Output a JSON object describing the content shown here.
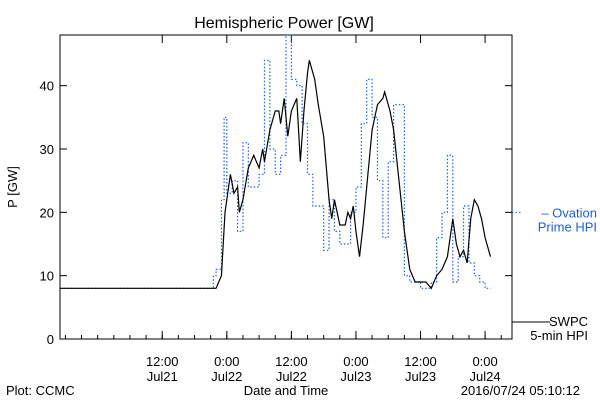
{
  "chart_data": {
    "type": "line",
    "title": "Hemispheric Power [GW]",
    "ylabel": "P [GW]",
    "xlabel": "Date and Time",
    "ylim": [
      0,
      48
    ],
    "xlim": [
      "2016-07-20T17:00",
      "2016-07-24T05:00"
    ],
    "yticks": [
      0,
      10,
      20,
      30,
      40
    ],
    "xticks": [
      {
        "time": "2016-07-21T12:00",
        "top": "12:00",
        "bottom": "Jul21"
      },
      {
        "time": "2016-07-22T00:00",
        "top": "0:00",
        "bottom": "Jul22"
      },
      {
        "time": "2016-07-22T12:00",
        "top": "12:00",
        "bottom": "Jul22"
      },
      {
        "time": "2016-07-23T00:00",
        "top": "0:00",
        "bottom": "Jul23"
      },
      {
        "time": "2016-07-23T12:00",
        "top": "12:00",
        "bottom": "Jul23"
      },
      {
        "time": "2016-07-24T00:00",
        "top": "0:00",
        "bottom": "Jul24"
      }
    ],
    "grid": false,
    "series": [
      {
        "name": "Ovation Prime HPI",
        "legend_lines": [
          "– Ovation",
          "Prime HPI"
        ],
        "color": "#1f5fd0",
        "style": "dotted-step",
        "level": 20,
        "points": [
          [
            "2016-07-20T17:00",
            8
          ],
          [
            "2016-07-21T21:00",
            8
          ],
          [
            "2016-07-21T21:30",
            10
          ],
          [
            "2016-07-21T22:00",
            11
          ],
          [
            "2016-07-21T23:00",
            22
          ],
          [
            "2016-07-21T23:30",
            35
          ],
          [
            "2016-07-22T00:00",
            23
          ],
          [
            "2016-07-22T01:00",
            25
          ],
          [
            "2016-07-22T02:00",
            17
          ],
          [
            "2016-07-22T03:00",
            31
          ],
          [
            "2016-07-22T04:00",
            24
          ],
          [
            "2016-07-22T06:00",
            26
          ],
          [
            "2016-07-22T07:00",
            44
          ],
          [
            "2016-07-22T08:00",
            30
          ],
          [
            "2016-07-22T09:00",
            26
          ],
          [
            "2016-07-22T10:00",
            29
          ],
          [
            "2016-07-22T11:00",
            48
          ],
          [
            "2016-07-22T12:00",
            41
          ],
          [
            "2016-07-22T13:00",
            40
          ],
          [
            "2016-07-22T14:00",
            34
          ],
          [
            "2016-07-22T15:00",
            26
          ],
          [
            "2016-07-22T16:00",
            21
          ],
          [
            "2016-07-22T18:00",
            14
          ],
          [
            "2016-07-22T19:00",
            22
          ],
          [
            "2016-07-22T20:00",
            17
          ],
          [
            "2016-07-22T21:00",
            15
          ],
          [
            "2016-07-22T23:00",
            20
          ],
          [
            "2016-07-23T00:00",
            24
          ],
          [
            "2016-07-23T01:00",
            34
          ],
          [
            "2016-07-23T02:00",
            41
          ],
          [
            "2016-07-23T03:00",
            35
          ],
          [
            "2016-07-23T04:00",
            25
          ],
          [
            "2016-07-23T05:00",
            16
          ],
          [
            "2016-07-23T06:00",
            28
          ],
          [
            "2016-07-23T07:00",
            37
          ],
          [
            "2016-07-23T09:00",
            10
          ],
          [
            "2016-07-23T10:00",
            9
          ],
          [
            "2016-07-23T12:00",
            8
          ],
          [
            "2016-07-23T14:00",
            9
          ],
          [
            "2016-07-23T15:00",
            16
          ],
          [
            "2016-07-23T16:00",
            20
          ],
          [
            "2016-07-23T17:00",
            29
          ],
          [
            "2016-07-23T18:00",
            9
          ],
          [
            "2016-07-23T19:00",
            13
          ],
          [
            "2016-07-23T20:00",
            21
          ],
          [
            "2016-07-23T21:00",
            12
          ],
          [
            "2016-07-23T22:00",
            10
          ],
          [
            "2016-07-23T23:00",
            9
          ],
          [
            "2016-07-24T00:00",
            8
          ],
          [
            "2016-07-24T01:00",
            8
          ]
        ]
      },
      {
        "name": "SWPC 5-min HPI",
        "legend_lines": [
          "SWPC",
          "5-min HPI"
        ],
        "color": "#000000",
        "style": "solid",
        "level": 2,
        "points": [
          [
            "2016-07-20T17:00",
            8
          ],
          [
            "2016-07-21T21:00",
            8
          ],
          [
            "2016-07-21T22:00",
            8
          ],
          [
            "2016-07-21T23:00",
            10
          ],
          [
            "2016-07-21T23:40",
            20
          ],
          [
            "2016-07-22T00:00",
            22
          ],
          [
            "2016-07-22T00:40",
            26
          ],
          [
            "2016-07-22T01:20",
            23
          ],
          [
            "2016-07-22T02:00",
            24
          ],
          [
            "2016-07-22T02:20",
            20
          ],
          [
            "2016-07-22T03:00",
            22
          ],
          [
            "2016-07-22T04:00",
            27
          ],
          [
            "2016-07-22T05:00",
            29
          ],
          [
            "2016-07-22T06:00",
            27
          ],
          [
            "2016-07-22T06:40",
            30
          ],
          [
            "2016-07-22T07:00",
            28
          ],
          [
            "2016-07-22T08:00",
            33
          ],
          [
            "2016-07-22T09:00",
            36
          ],
          [
            "2016-07-22T09:40",
            36
          ],
          [
            "2016-07-22T10:00",
            34
          ],
          [
            "2016-07-22T10:40",
            38
          ],
          [
            "2016-07-22T11:20",
            32
          ],
          [
            "2016-07-22T12:00",
            36
          ],
          [
            "2016-07-22T13:00",
            38
          ],
          [
            "2016-07-22T13:40",
            28
          ],
          [
            "2016-07-22T14:20",
            36
          ],
          [
            "2016-07-22T15:00",
            42
          ],
          [
            "2016-07-22T15:20",
            44
          ],
          [
            "2016-07-22T16:20",
            41
          ],
          [
            "2016-07-22T17:00",
            37
          ],
          [
            "2016-07-22T18:00",
            32
          ],
          [
            "2016-07-22T19:00",
            22
          ],
          [
            "2016-07-22T19:30",
            19
          ],
          [
            "2016-07-22T20:00",
            22
          ],
          [
            "2016-07-22T21:00",
            18
          ],
          [
            "2016-07-22T22:00",
            18
          ],
          [
            "2016-07-22T22:30",
            20
          ],
          [
            "2016-07-22T23:00",
            19
          ],
          [
            "2016-07-22T23:30",
            21
          ],
          [
            "2016-07-23T00:00",
            17
          ],
          [
            "2016-07-23T00:40",
            13
          ],
          [
            "2016-07-23T01:20",
            18
          ],
          [
            "2016-07-23T02:00",
            24
          ],
          [
            "2016-07-23T03:00",
            33
          ],
          [
            "2016-07-23T04:00",
            37
          ],
          [
            "2016-07-23T05:00",
            38
          ],
          [
            "2016-07-23T05:20",
            39
          ],
          [
            "2016-07-23T06:20",
            36
          ],
          [
            "2016-07-23T07:00",
            33
          ],
          [
            "2016-07-23T08:00",
            25
          ],
          [
            "2016-07-23T09:00",
            17
          ],
          [
            "2016-07-23T10:00",
            11
          ],
          [
            "2016-07-23T11:00",
            9
          ],
          [
            "2016-07-23T12:00",
            9
          ],
          [
            "2016-07-23T13:00",
            9
          ],
          [
            "2016-07-23T14:00",
            8
          ],
          [
            "2016-07-23T15:00",
            10
          ],
          [
            "2016-07-23T16:00",
            11
          ],
          [
            "2016-07-23T17:00",
            13
          ],
          [
            "2016-07-23T18:00",
            19
          ],
          [
            "2016-07-23T18:40",
            15
          ],
          [
            "2016-07-23T19:20",
            13
          ],
          [
            "2016-07-23T20:00",
            14
          ],
          [
            "2016-07-23T20:40",
            12
          ],
          [
            "2016-07-23T21:20",
            19
          ],
          [
            "2016-07-23T22:00",
            22
          ],
          [
            "2016-07-23T22:40",
            21
          ],
          [
            "2016-07-23T23:20",
            19
          ],
          [
            "2016-07-24T00:00",
            16
          ],
          [
            "2016-07-24T00:40",
            14
          ],
          [
            "2016-07-24T01:00",
            13
          ]
        ]
      }
    ]
  },
  "footer": {
    "left": "Plot: CCMC",
    "right": "2016/07/24 05:10:12"
  }
}
